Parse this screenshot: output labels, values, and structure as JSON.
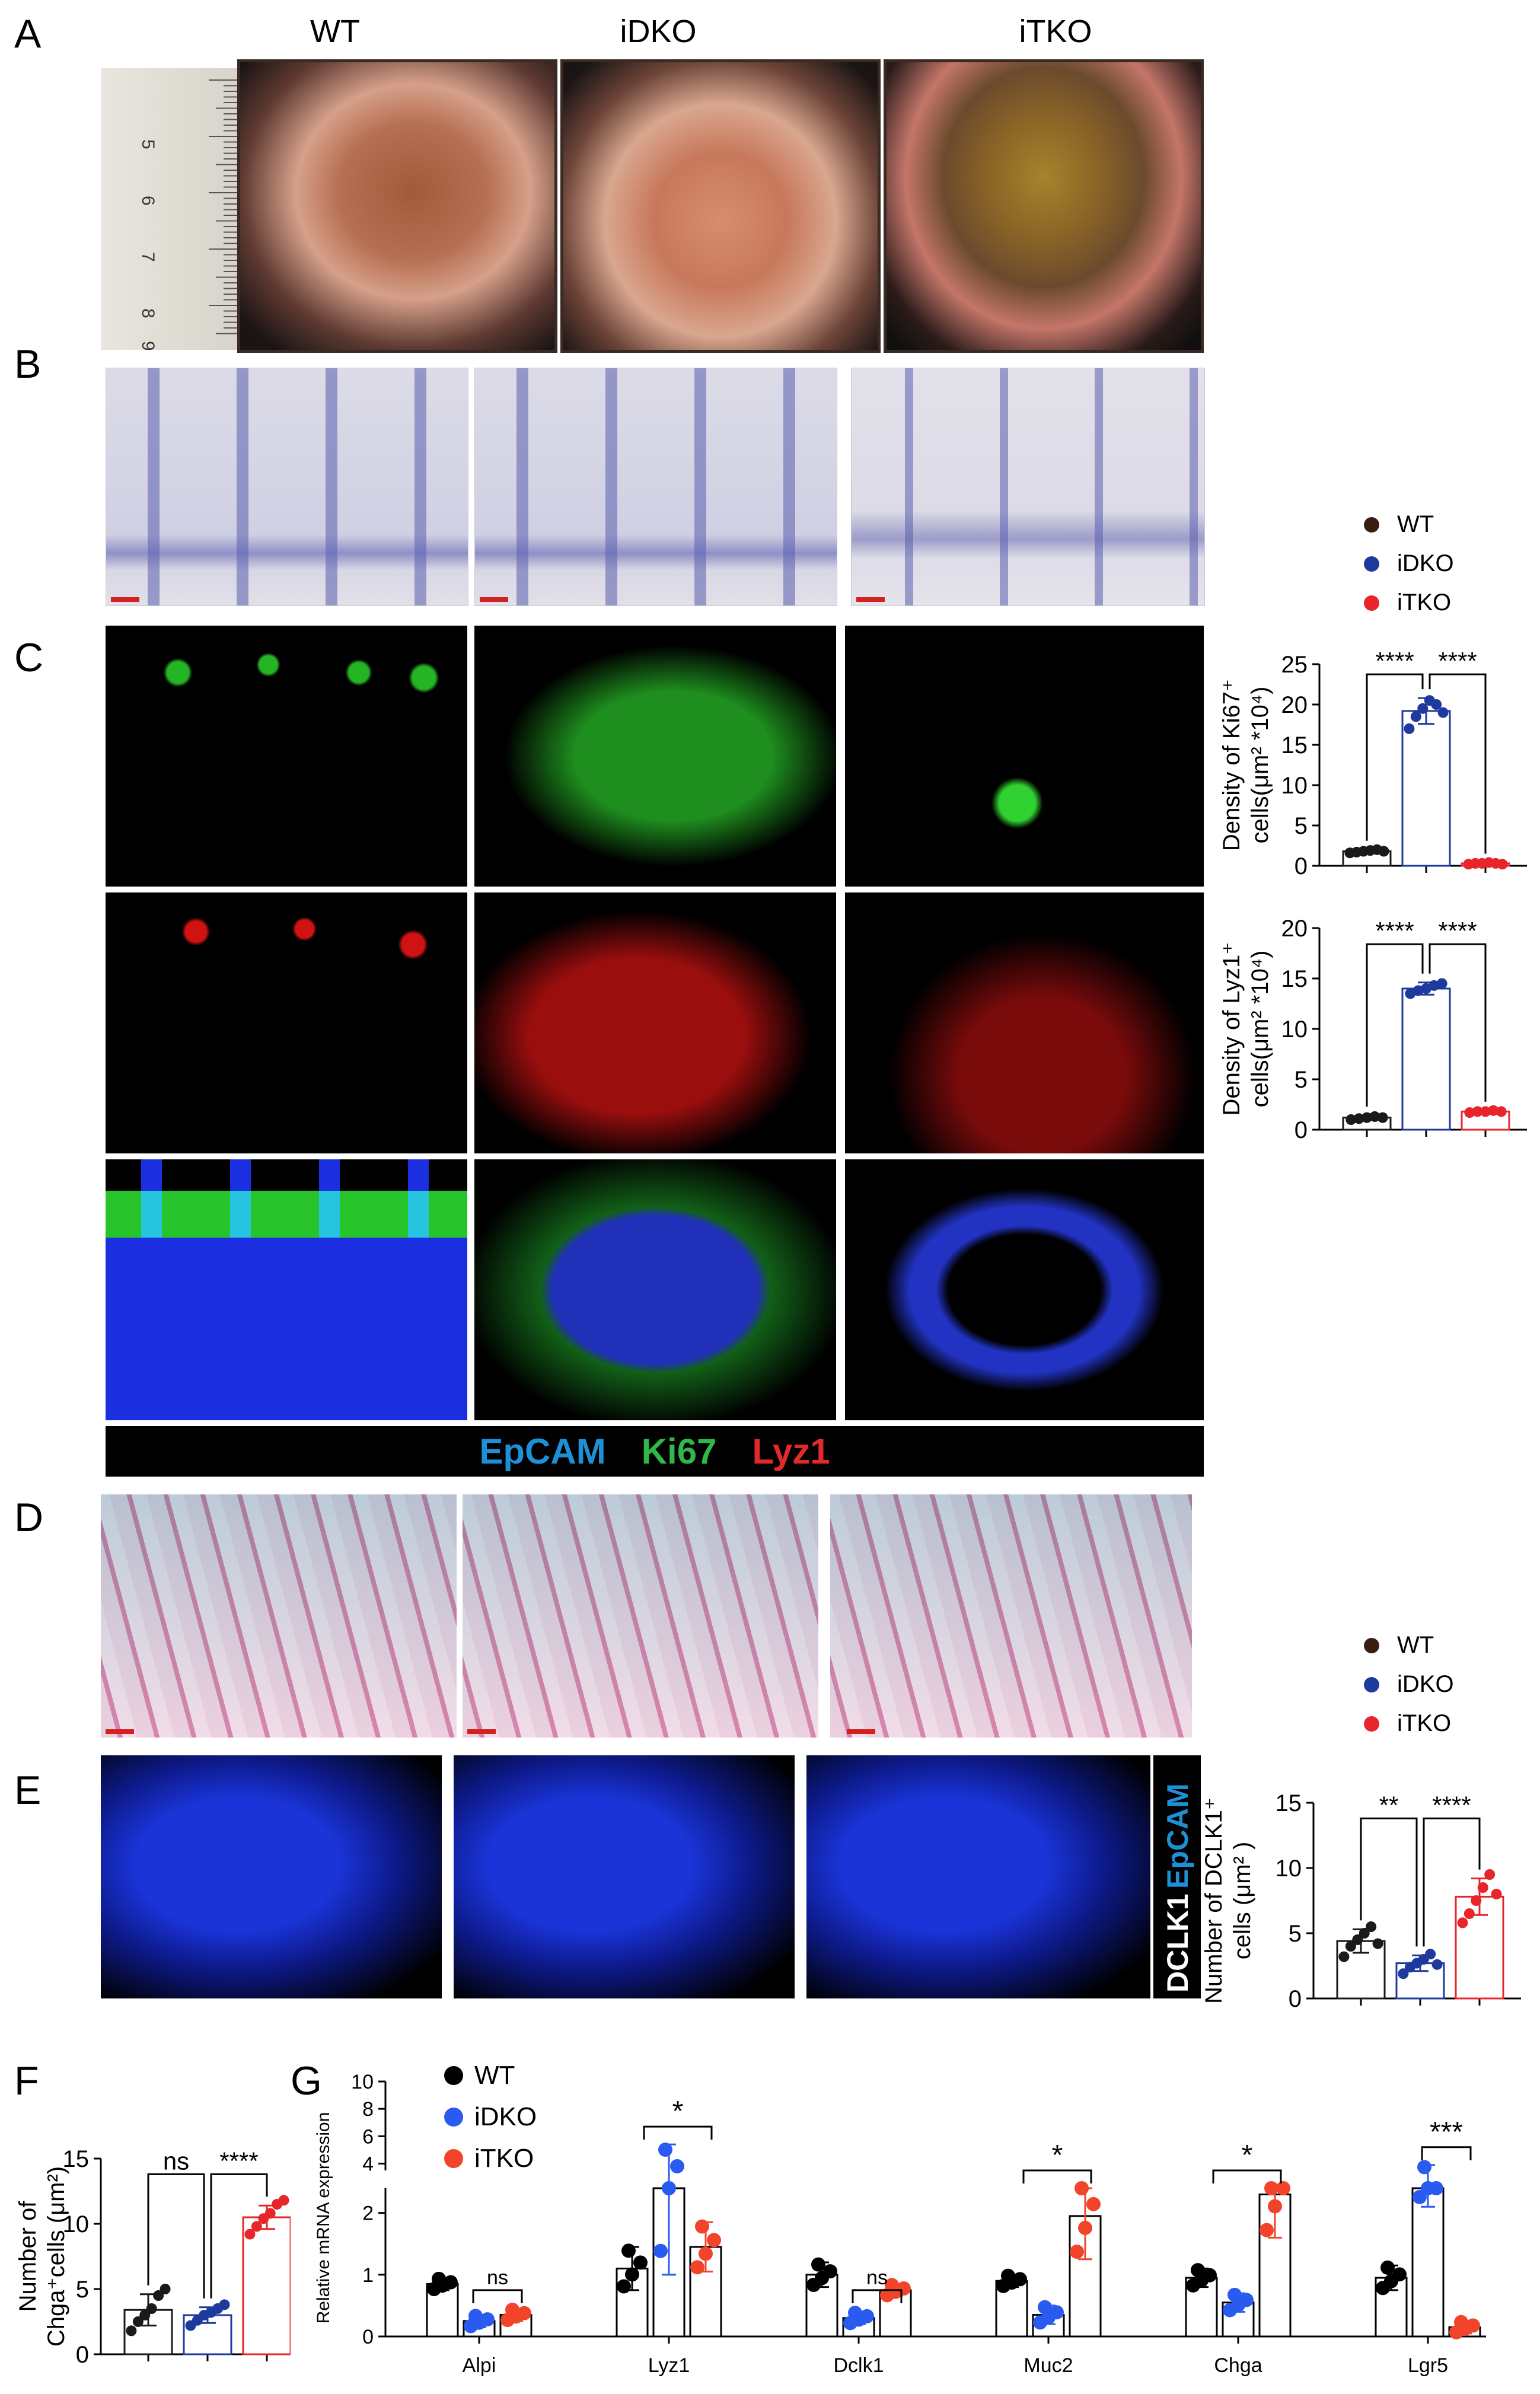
{
  "panels": {
    "A": "A",
    "B": "B",
    "C": "C",
    "D": "D",
    "E": "E",
    "F": "F",
    "G": "G"
  },
  "groups": [
    "WT",
    "iDKO",
    "iTKO"
  ],
  "ruler_marks": [
    "5",
    "6",
    "7",
    "8",
    "9"
  ],
  "stain_legend": {
    "epcam": "EpCAM",
    "ki67": "Ki67",
    "lyz1": "Lyz1"
  },
  "dclk_label": {
    "dclk1": "DCLK1",
    "epcam": "EpCAM"
  },
  "colors": {
    "WT": "#1a1a1a",
    "iDKO": "#1f3a9e",
    "iTKO": "#e8252a",
    "WT_G": "#000000",
    "iDKO_G": "#2a5bf0",
    "iTKO_G": "#f2442a"
  },
  "legend1": [
    {
      "label": "WT",
      "color": "#3a1e12"
    },
    {
      "label": "iDKO",
      "color": "#1f3a9e"
    },
    {
      "label": "iTKO",
      "color": "#e8252a"
    }
  ],
  "legend2": [
    {
      "label": "WT",
      "color": "#3a1e12"
    },
    {
      "label": "iDKO",
      "color": "#1f3a9e"
    },
    {
      "label": "iTKO",
      "color": "#e8252a"
    }
  ],
  "chart_data": [
    {
      "id": "ki67",
      "type": "bar",
      "ylabel_lines": [
        "Density of Ki67⁺",
        "cells(μm² *10⁴)"
      ],
      "ylim": [
        0,
        25
      ],
      "yticks": [
        0,
        5,
        10,
        15,
        20,
        25
      ],
      "series": [
        {
          "name": "WT",
          "mean": 1.8,
          "sd": 0.2,
          "points": [
            1.6,
            1.7,
            1.8,
            1.9,
            2.0,
            1.8
          ]
        },
        {
          "name": "iDKO",
          "mean": 19.2,
          "sd": 1.6,
          "points": [
            17.0,
            18.5,
            19.5,
            20.5,
            20.0,
            19.0
          ]
        },
        {
          "name": "iTKO",
          "mean": 0.3,
          "sd": 0.1,
          "points": [
            0.2,
            0.3,
            0.3,
            0.4,
            0.3,
            0.2
          ]
        }
      ],
      "comparisons": [
        {
          "from": 0,
          "to": 1,
          "label": "****"
        },
        {
          "from": 1,
          "to": 2,
          "label": "****"
        }
      ]
    },
    {
      "id": "lyz1",
      "type": "bar",
      "ylabel_lines": [
        "Density of Lyz1⁺",
        "cells(μm² *10⁴)"
      ],
      "ylim": [
        0,
        20
      ],
      "yticks": [
        0,
        5,
        10,
        15,
        20
      ],
      "series": [
        {
          "name": "WT",
          "mean": 1.2,
          "sd": 0.2,
          "points": [
            1.0,
            1.1,
            1.2,
            1.3,
            1.2
          ]
        },
        {
          "name": "iDKO",
          "mean": 14.0,
          "sd": 0.6,
          "points": [
            13.5,
            13.8,
            14.0,
            14.3,
            14.5
          ]
        },
        {
          "name": "iTKO",
          "mean": 1.8,
          "sd": 0.1,
          "points": [
            1.7,
            1.8,
            1.8,
            1.9,
            1.8
          ]
        }
      ],
      "comparisons": [
        {
          "from": 0,
          "to": 1,
          "label": "****"
        },
        {
          "from": 1,
          "to": 2,
          "label": "****"
        }
      ]
    },
    {
      "id": "dclk1",
      "type": "bar",
      "ylabel_lines": [
        "Number of DCLK1⁺",
        "cells (μm² )"
      ],
      "ylim": [
        0,
        15
      ],
      "yticks": [
        0,
        5,
        10,
        15
      ],
      "series": [
        {
          "name": "WT",
          "mean": 4.4,
          "sd": 0.9,
          "points": [
            3.2,
            4.0,
            4.5,
            5.0,
            5.5,
            4.2
          ]
        },
        {
          "name": "iDKO",
          "mean": 2.7,
          "sd": 0.6,
          "points": [
            1.9,
            2.4,
            2.7,
            3.0,
            3.4,
            2.6
          ]
        },
        {
          "name": "iTKO",
          "mean": 7.8,
          "sd": 1.4,
          "points": [
            5.8,
            6.5,
            7.5,
            8.5,
            9.5,
            8.0
          ]
        }
      ],
      "comparisons": [
        {
          "from": 0,
          "to": 1,
          "label": "**"
        },
        {
          "from": 1,
          "to": 2,
          "label": "****"
        }
      ]
    },
    {
      "id": "chga",
      "type": "bar",
      "ylabel_lines": [
        "Number of",
        "Chga⁺cells (μm²)"
      ],
      "ylim": [
        0,
        15
      ],
      "yticks": [
        0,
        5,
        10,
        15
      ],
      "series": [
        {
          "name": "WT",
          "mean": 3.4,
          "sd": 1.2,
          "points": [
            1.8,
            2.5,
            3.0,
            3.5,
            4.5,
            5.0
          ]
        },
        {
          "name": "iDKO",
          "mean": 3.0,
          "sd": 0.6,
          "points": [
            2.2,
            2.6,
            3.0,
            3.2,
            3.5,
            3.8
          ]
        },
        {
          "name": "iTKO",
          "mean": 10.5,
          "sd": 0.9,
          "points": [
            9.2,
            9.8,
            10.4,
            10.8,
            11.5,
            11.8
          ]
        }
      ],
      "comparisons": [
        {
          "from": 0,
          "to": 1,
          "label": "ns"
        },
        {
          "from": 1,
          "to": 2,
          "label": "****"
        }
      ]
    },
    {
      "id": "mrna",
      "type": "bar",
      "ylabel": "Relative  mRNA expression",
      "categories": [
        "Alpi",
        "Lyz1",
        "Dclk1",
        "Muc2",
        "Chga",
        "Lgr5"
      ],
      "yticks_lower": [
        0,
        1,
        2
      ],
      "yticks_upper": [
        4,
        6,
        8,
        10
      ],
      "break": [
        2.4,
        3.5
      ],
      "legend": [
        "WT",
        "iDKO",
        "iTKO"
      ],
      "series": [
        {
          "name": "WT",
          "values": [
            0.85,
            1.1,
            1.0,
            0.9,
            0.95,
            0.95
          ],
          "sd": [
            0.1,
            0.35,
            0.2,
            0.1,
            0.15,
            0.2
          ]
        },
        {
          "name": "iDKO",
          "values": [
            0.25,
            3.2,
            0.3,
            0.35,
            0.55,
            3.0
          ],
          "sd": [
            0.1,
            2.2,
            0.1,
            0.15,
            0.15,
            0.9
          ]
        },
        {
          "name": "iTKO",
          "values": [
            0.35,
            1.45,
            0.75,
            1.95,
            2.3,
            0.15
          ],
          "sd": [
            0.1,
            0.4,
            0.1,
            0.7,
            0.7,
            0.1
          ]
        }
      ],
      "comparisons": [
        {
          "cat": 0,
          "label": "ns"
        },
        {
          "cat": 1,
          "label": "*"
        },
        {
          "cat": 2,
          "label": "ns"
        },
        {
          "cat": 3,
          "label": "*"
        },
        {
          "cat": 4,
          "label": "*"
        },
        {
          "cat": 5,
          "label": "***"
        }
      ]
    }
  ]
}
